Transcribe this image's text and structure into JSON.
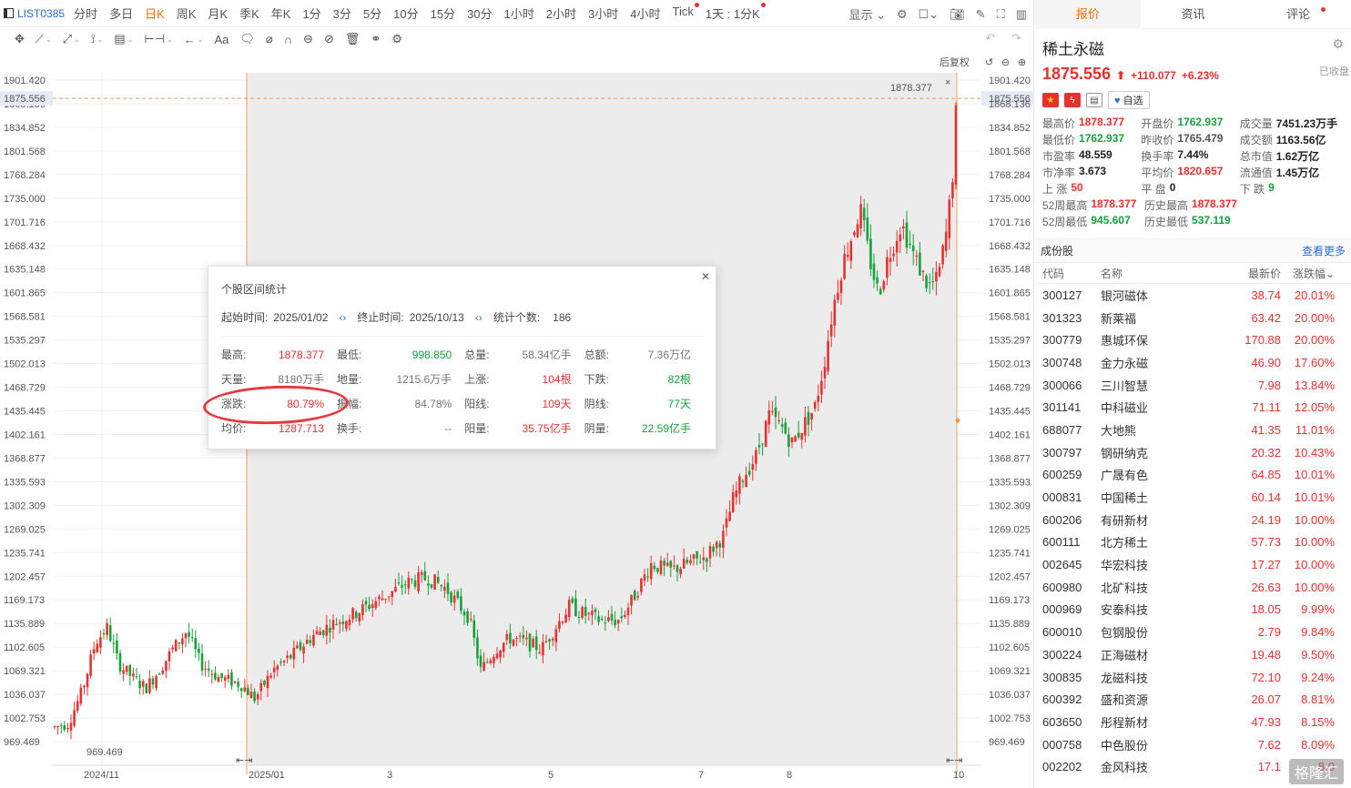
{
  "topbar": {
    "code": "LIST0385",
    "periods": [
      "分时",
      "多日",
      "日K",
      "周K",
      "月K",
      "季K",
      "年K",
      "1分",
      "3分",
      "5分",
      "10分",
      "15分",
      "30分",
      "1小时",
      "2小时",
      "3小时",
      "4小时",
      "Tick",
      "1天 : 1分K"
    ],
    "active": "日K",
    "display_label": "显示"
  },
  "chart": {
    "adjust_label": "后复权",
    "current_price_label": "1875.556",
    "high_marker": "1878.377",
    "low_marker": "969.469",
    "y_ticks": [
      "1901.420",
      "1868.136",
      "1834.852",
      "1801.568",
      "1768.284",
      "1735.000",
      "1701.716",
      "1668.432",
      "1635.148",
      "1601.865",
      "1568.581",
      "1535.297",
      "1502.013",
      "1468.729",
      "1435.445",
      "1402.161",
      "1368.877",
      "1335.593",
      "1302.309",
      "1269.025",
      "1235.741",
      "1202.457",
      "1169.173",
      "1135.889",
      "1102.605",
      "1069.321",
      "1036.037",
      "1002.753",
      "969.469"
    ],
    "right_y_top": "1901.420",
    "x_labels": [
      "2024/11",
      "2025/01",
      "3",
      "5",
      "7",
      "8",
      "10"
    ],
    "colors": {
      "up": "#e93030",
      "down": "#14a33a",
      "selection": "#ececec",
      "range_line": "#f5a060"
    }
  },
  "stats_dialog": {
    "title": "个股区间统计",
    "start_label": "起始时间:",
    "start": "2025/01/02",
    "end_label": "终止时间:",
    "end": "2025/10/13",
    "count_label": "统计个数:",
    "count": "186",
    "rows": [
      [
        {
          "k": "最高:",
          "v": "1878.377",
          "c": "red"
        },
        {
          "k": "最低:",
          "v": "998.850",
          "c": "green"
        },
        {
          "k": "总量:",
          "v": "58.34亿手",
          "c": "gray"
        },
        {
          "k": "总额:",
          "v": "7.36万亿",
          "c": "gray"
        }
      ],
      [
        {
          "k": "天量:",
          "v": "8180万手",
          "c": "gray"
        },
        {
          "k": "地量:",
          "v": "1215.6万手",
          "c": "gray"
        },
        {
          "k": "上涨:",
          "v": "104根",
          "c": "red"
        },
        {
          "k": "下跌:",
          "v": "82根",
          "c": "green"
        }
      ],
      [
        {
          "k": "涨跌:",
          "v": "80.79%",
          "c": "red"
        },
        {
          "k": "振幅:",
          "v": "84.78%",
          "c": "gray"
        },
        {
          "k": "阳线:",
          "v": "109天",
          "c": "red"
        },
        {
          "k": "阴线:",
          "v": "77天",
          "c": "green"
        }
      ],
      [
        {
          "k": "均价:",
          "v": "1287.713",
          "c": "red"
        },
        {
          "k": "换手:",
          "v": "--",
          "c": "gray"
        },
        {
          "k": "阳量:",
          "v": "35.75亿手",
          "c": "red"
        },
        {
          "k": "阴量:",
          "v": "22.59亿手",
          "c": "green"
        }
      ]
    ]
  },
  "right": {
    "tabs": [
      "报价",
      "资讯",
      "评论"
    ],
    "name": "稀土永磁",
    "price": "1875.556",
    "change": "+110.077",
    "pct": "+6.23%",
    "fav_state": "已收盘",
    "fav_label": "自选",
    "quote": [
      [
        {
          "k": "最高价",
          "v": "1878.377",
          "c": "red"
        },
        {
          "k": "开盘价",
          "v": "1762.937",
          "c": "green"
        },
        {
          "k": "成交量",
          "v": "7451.23万手",
          "c": "dark"
        }
      ],
      [
        {
          "k": "最低价",
          "v": "1762.937",
          "c": "green"
        },
        {
          "k": "昨收价",
          "v": "1765.479",
          "c": "darkgray"
        },
        {
          "k": "成交额",
          "v": "1163.56亿",
          "c": "dark"
        }
      ],
      [
        {
          "k": "市盈率",
          "v": "48.559",
          "c": "dark"
        },
        {
          "k": "换手率",
          "v": "7.44%",
          "c": "dark"
        },
        {
          "k": "总市值",
          "v": "1.62万亿",
          "c": "dark"
        }
      ],
      [
        {
          "k": "市净率",
          "v": "3.673",
          "c": "dark"
        },
        {
          "k": "平均价",
          "v": "1820.657",
          "c": "red"
        },
        {
          "k": "流通值",
          "v": "1.45万亿",
          "c": "dark"
        }
      ],
      [
        {
          "k": "上 涨",
          "v": "50",
          "c": "red"
        },
        {
          "k": "平 盘",
          "v": "0",
          "c": "dark"
        },
        {
          "k": "下 跌",
          "v": "9",
          "c": "green"
        }
      ],
      [
        {
          "k": "52周最高",
          "v": "1878.377",
          "c": "red"
        },
        {
          "k": "历史最高",
          "v": "1878.377",
          "c": "red"
        }
      ],
      [
        {
          "k": "52周最低",
          "v": "945.607",
          "c": "green"
        },
        {
          "k": "历史最低",
          "v": "537.119",
          "c": "green"
        }
      ]
    ],
    "components_title": "成份股",
    "more_label": "查看更多",
    "headers": [
      "代码",
      "名称",
      "最新价",
      "涨跌幅"
    ],
    "components": [
      [
        "300127",
        "银河磁体",
        "38.74",
        "20.01%"
      ],
      [
        "301323",
        "新莱福",
        "63.42",
        "20.00%"
      ],
      [
        "300779",
        "惠城环保",
        "170.88",
        "20.00%"
      ],
      [
        "300748",
        "金力永磁",
        "46.90",
        "17.60%"
      ],
      [
        "300066",
        "三川智慧",
        "7.98",
        "13.84%"
      ],
      [
        "301141",
        "中科磁业",
        "71.11",
        "12.05%"
      ],
      [
        "688077",
        "大地熊",
        "41.35",
        "11.01%"
      ],
      [
        "300797",
        "钢研纳克",
        "20.32",
        "10.43%"
      ],
      [
        "600259",
        "广晟有色",
        "64.85",
        "10.01%"
      ],
      [
        "000831",
        "中国稀土",
        "60.14",
        "10.01%"
      ],
      [
        "600206",
        "有研新材",
        "24.19",
        "10.00%"
      ],
      [
        "600111",
        "北方稀土",
        "57.73",
        "10.00%"
      ],
      [
        "002645",
        "华宏科技",
        "17.27",
        "10.00%"
      ],
      [
        "600980",
        "北矿科技",
        "26.63",
        "10.00%"
      ],
      [
        "000969",
        "安泰科技",
        "18.05",
        "9.99%"
      ],
      [
        "600010",
        "包钢股份",
        "2.79",
        "9.84%"
      ],
      [
        "300224",
        "正海磁材",
        "19.48",
        "9.50%"
      ],
      [
        "300835",
        "龙磁科技",
        "72.10",
        "9.24%"
      ],
      [
        "600392",
        "盛和资源",
        "26.07",
        "8.81%"
      ],
      [
        "603650",
        "彤程新材",
        "47.93",
        "8.15%"
      ],
      [
        "000758",
        "中色股份",
        "7.62",
        "8.09%"
      ],
      [
        "002202",
        "金风科技",
        "17.1",
        "8.0"
      ]
    ],
    "watermark": "格隆汇"
  }
}
